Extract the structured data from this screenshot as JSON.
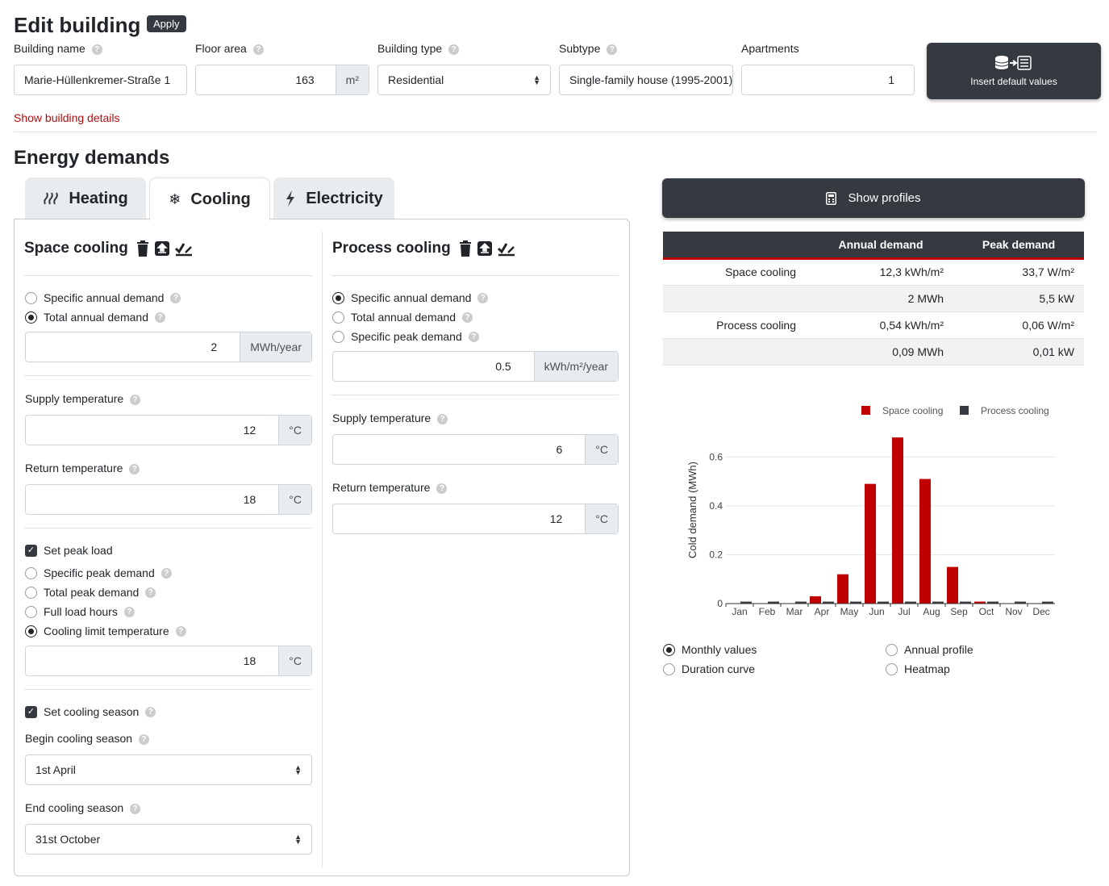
{
  "header": {
    "title": "Edit building",
    "apply_label": "Apply"
  },
  "fields": {
    "building_name": {
      "label": "Building name",
      "value": "Marie-Hüllenkremer-Straße 1"
    },
    "floor_area": {
      "label": "Floor area",
      "value": "163",
      "unit": "m²"
    },
    "building_type": {
      "label": "Building type",
      "value": "Residential"
    },
    "subtype": {
      "label": "Subtype",
      "value": "Single-family house (1995-2001)"
    },
    "apartments": {
      "label": "Apartments",
      "value": "1"
    },
    "insert_defaults_label": "Insert default values"
  },
  "show_details": "Show building details",
  "energy": {
    "title": "Energy demands",
    "tabs": [
      {
        "label": "Heating",
        "icon": "heat-icon"
      },
      {
        "label": "Cooling",
        "icon": "snowflake-icon"
      },
      {
        "label": "Electricity",
        "icon": "bolt-icon"
      }
    ],
    "active_tab": "Cooling"
  },
  "space_cooling": {
    "title": "Space cooling",
    "options": [
      "Specific annual demand",
      "Total annual demand"
    ],
    "selected": "Total annual demand",
    "demand_value": "2",
    "demand_unit": "MWh/year",
    "supply_label": "Supply temperature",
    "supply_value": "12",
    "return_label": "Return temperature",
    "return_value": "18",
    "temp_unit": "°C",
    "peak_load_label": "Set peak load",
    "peak_options": [
      "Specific peak demand",
      "Total peak demand",
      "Full load hours",
      "Cooling limit temperature"
    ],
    "peak_selected": "Cooling limit temperature",
    "peak_value": "18",
    "season_label": "Set cooling season",
    "begin_label": "Begin cooling season",
    "begin_value": "1st April",
    "end_label": "End cooling season",
    "end_value": "31st October"
  },
  "process_cooling": {
    "title": "Process cooling",
    "options": [
      "Specific annual demand",
      "Total annual demand",
      "Specific peak demand"
    ],
    "selected": "Specific annual demand",
    "demand_value": "0.5",
    "demand_unit": "kWh/m²/year",
    "supply_label": "Supply temperature",
    "supply_value": "6",
    "return_label": "Return temperature",
    "return_value": "12",
    "temp_unit": "°C"
  },
  "profiles_btn": "Show profiles",
  "summary": {
    "headers": [
      "",
      "Annual demand",
      "Peak demand"
    ],
    "rows": [
      [
        "Space cooling",
        "12,3 kWh/m²",
        "33,7 W/m²"
      ],
      [
        "",
        "2 MWh",
        "5,5 kW"
      ],
      [
        "Process cooling",
        "0,54 kWh/m²",
        "0,06 W/m²"
      ],
      [
        "",
        "0,09 MWh",
        "0,01 kW"
      ]
    ]
  },
  "chart_data": {
    "type": "bar",
    "categories": [
      "Jan",
      "Feb",
      "Mar",
      "Apr",
      "May",
      "Jun",
      "Jul",
      "Aug",
      "Sep",
      "Oct",
      "Nov",
      "Dec"
    ],
    "series": [
      {
        "name": "Space cooling",
        "color": "#c00000",
        "values": [
          0,
          0,
          0,
          0.03,
          0.12,
          0.49,
          0.68,
          0.51,
          0.15,
          0.008,
          0,
          0
        ]
      },
      {
        "name": "Process cooling",
        "color": "#343a40",
        "values": [
          0.008,
          0.008,
          0.008,
          0.008,
          0.008,
          0.008,
          0.008,
          0.008,
          0.008,
          0.008,
          0.008,
          0.008
        ]
      }
    ],
    "ylabel": "Cold demand (MWh)",
    "yticks": [
      "0",
      "0.2",
      "0.4",
      "0.6"
    ],
    "ylim": [
      0,
      0.72
    ],
    "legend": "top-right",
    "grid": true
  },
  "view_options": {
    "items": [
      "Monthly values",
      "Annual profile",
      "Duration curve",
      "Heatmap"
    ],
    "selected": "Monthly values"
  }
}
